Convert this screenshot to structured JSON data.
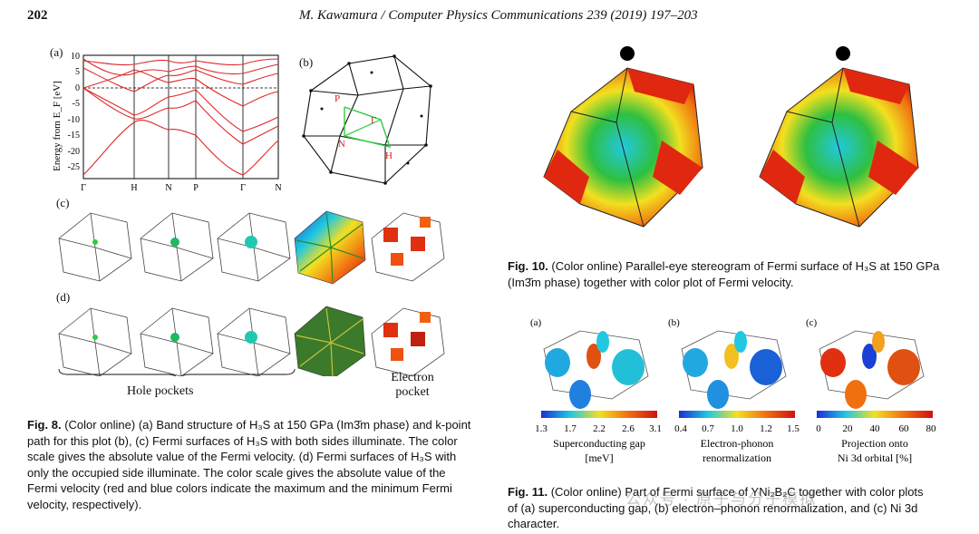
{
  "header": {
    "page_number": "202",
    "journal": "M. Kawamura / Computer Physics Communications 239 (2019) 197–203"
  },
  "fig8": {
    "panel_a_label": "(a)",
    "panel_b_label": "(b)",
    "panel_c_label": "(c)",
    "panel_d_label": "(d)",
    "y_axis_label": "Energy from E_F [eV]",
    "y_ticks": [
      "10",
      "5",
      "0",
      "-5",
      "-10",
      "-15",
      "-20",
      "-25"
    ],
    "x_ticks": [
      "Γ",
      "H",
      "N",
      "P",
      "Γ",
      "N"
    ],
    "bz_points": [
      "P",
      "Γ",
      "N",
      "H"
    ],
    "hole_pockets_label": "Hole pockets",
    "electron_pocket_label_1": "Electron",
    "electron_pocket_label_2": "pocket",
    "caption_title": "Fig. 8.",
    "caption_l1": "(Color online) (a) Band structure of H₃S at 150 GPa (Im3̄m phase) and k-point",
    "caption_l2": "path for this plot (b), (c) Fermi surfaces of H₃S with both sides illuminate. The color",
    "caption_l3": "scale gives the absolute value of the Fermi velocity. (d) Fermi surfaces of H₃S with",
    "caption_l4": "only the occupied side illuminate. The color scale gives the absolute value of the",
    "caption_l5": "Fermi velocity (red and blue colors indicate the maximum and the minimum Fermi",
    "caption_l6": "velocity, respectively)."
  },
  "fig10": {
    "caption_title": "Fig. 10.",
    "caption_l1": "(Color online) Parallel-eye stereogram of Fermi surface of H₃S at 150 GPa",
    "caption_l2": "(Im3̄m phase) together with color plot of Fermi velocity."
  },
  "fig11": {
    "panels": [
      {
        "label": "(a)",
        "ticks": [
          "1.3",
          "1.7",
          "2.2",
          "2.6",
          "3.1"
        ],
        "title": "Superconducting gap",
        "unit": "[meV]"
      },
      {
        "label": "(b)",
        "ticks": [
          "0.4",
          "0.7",
          "1.0",
          "1.2",
          "1.5"
        ],
        "title": "Electron-phonon",
        "unit": "renormalization"
      },
      {
        "label": "(c)",
        "ticks": [
          "0",
          "20",
          "40",
          "60",
          "80"
        ],
        "title": "Projection onto",
        "unit": "Ni 3d orbital [%]"
      }
    ],
    "caption_title": "Fig. 11.",
    "caption_l1": "(Color online) Part of Fermi surface of YNi₂B₂C together with color plots",
    "caption_l2": "of (a) superconducting gap, (b) electron–phonon renormalization, and (c) Ni 3d",
    "caption_l3": "character."
  },
  "watermark": "公众号 · 原子与分子模拟",
  "colors": {
    "band": "#e0282a",
    "path": "#2ecc40",
    "label_red": "#d62020"
  }
}
